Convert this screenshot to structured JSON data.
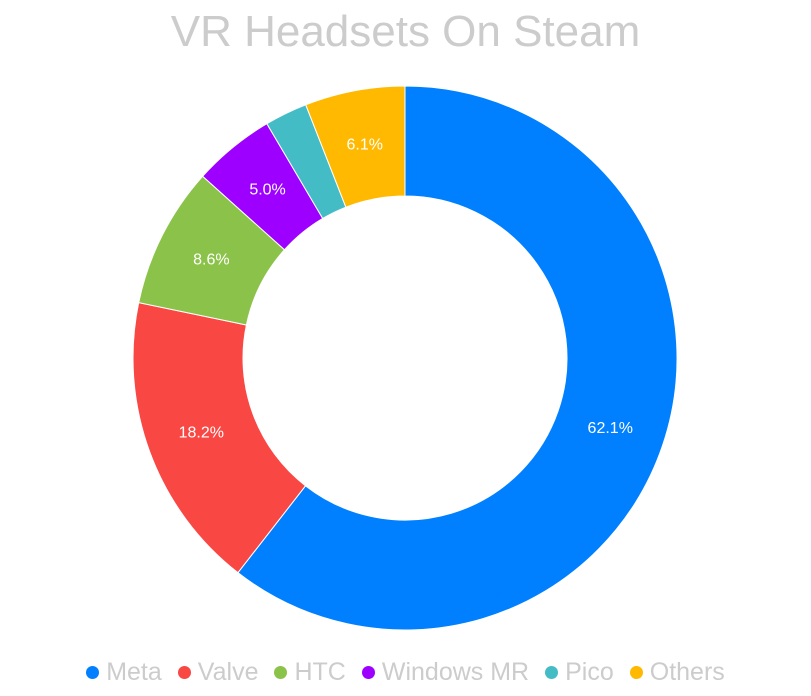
{
  "chart_data": {
    "type": "pie",
    "title": "VR Headsets On Steam",
    "categories": [
      "Meta",
      "Valve",
      "HTC",
      "Windows MR",
      "Pico",
      "Others"
    ],
    "values": [
      62.1,
      18.2,
      8.6,
      5.0,
      2.6,
      6.1
    ],
    "data_labels": [
      "62.1%",
      "18.2%",
      "8.6%",
      "5.0%",
      "",
      "6.1%"
    ],
    "colors": [
      "#0080ff",
      "#f94744",
      "#8bc34a",
      "#9d00ff",
      "#44bcc6",
      "#ffb900"
    ],
    "donut": true,
    "legend_position": "bottom"
  }
}
